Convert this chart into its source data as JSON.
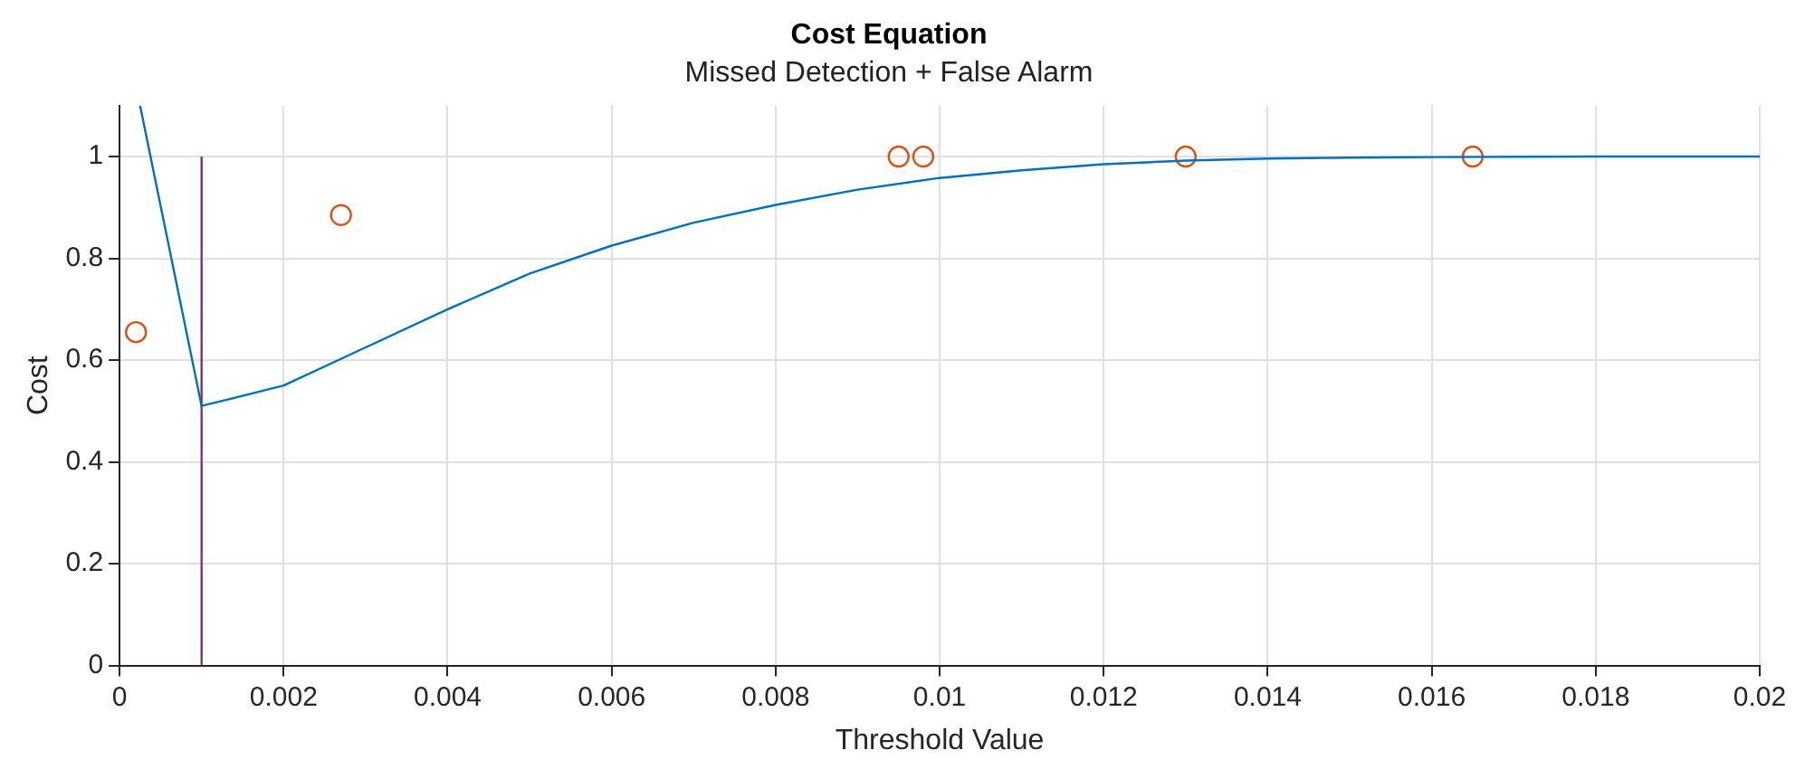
{
  "chart_data": {
    "type": "line",
    "title": "Cost Equation",
    "subtitle": "Missed Detection + False Alarm",
    "xlabel": "Threshold Value",
    "ylabel": "Cost",
    "xlim": [
      0,
      0.02
    ],
    "xticks": [
      0,
      0.002,
      0.004,
      0.006,
      0.008,
      0.01,
      0.012,
      0.014,
      0.016,
      0.018,
      0.02
    ],
    "ylim": [
      0,
      1.1
    ],
    "yticks": [
      0,
      0.2,
      0.4,
      0.6,
      0.8,
      1
    ],
    "grid": true,
    "legend": false,
    "series": [
      {
        "color": "#0072bd",
        "marker": "none",
        "x": [
          0.00025,
          0.001,
          0.002,
          0.003,
          0.004,
          0.005,
          0.006,
          0.007,
          0.008,
          0.009,
          0.01,
          0.011,
          0.012,
          0.013,
          0.014,
          0.015,
          0.016,
          0.018,
          0.02
        ],
        "values": [
          1.1,
          0.51,
          0.55,
          0.625,
          0.7,
          0.77,
          0.825,
          0.87,
          0.905,
          0.935,
          0.958,
          0.973,
          0.985,
          0.992,
          0.996,
          0.998,
          0.999,
          1.0,
          1.0
        ]
      },
      {
        "color": "#7e2f8e",
        "marker": "none",
        "x": [
          0.001,
          0.001
        ],
        "values": [
          0,
          1
        ]
      },
      {
        "type": "scatter",
        "color": "#d95319",
        "marker": "circle",
        "x": [
          0.0002,
          0.0027,
          0.0095,
          0.0098,
          0.013,
          0.0165
        ],
        "values": [
          0.655,
          0.885,
          1.0,
          1.0,
          1.0,
          1.0
        ]
      }
    ]
  }
}
